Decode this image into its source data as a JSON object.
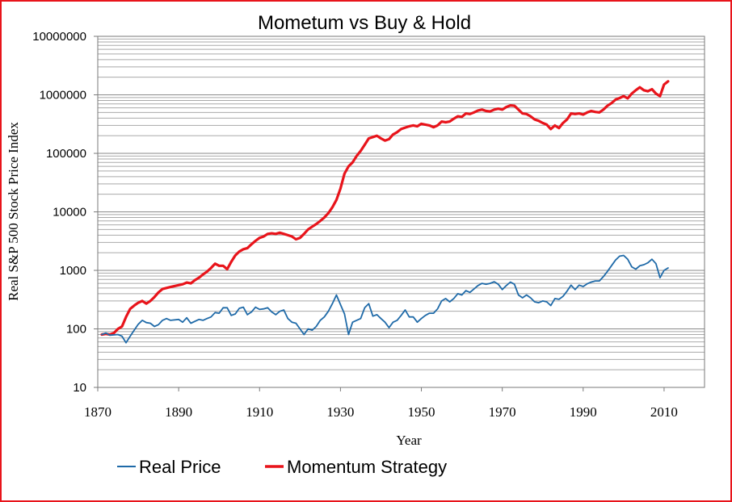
{
  "chart_data": {
    "type": "line",
    "title": "Mometum vs Buy & Hold",
    "xlabel": "Year",
    "ylabel": "Real S&P 500 Stock Price Index",
    "xlim": [
      1870,
      2020
    ],
    "ylim": [
      10,
      10000000
    ],
    "yscale": "log",
    "grid": true,
    "legend_position": "bottom",
    "x_ticks": [
      "1870",
      "1890",
      "1910",
      "1930",
      "1950",
      "1970",
      "1990",
      "2010"
    ],
    "y_ticks": [
      "10",
      "100",
      "1000",
      "10000",
      "100000",
      "1000000",
      "10000000"
    ],
    "series": [
      {
        "name": "Real Price",
        "color": "#1f6aa8",
        "points": [
          [
            1871,
            80
          ],
          [
            1872,
            85
          ],
          [
            1873,
            78
          ],
          [
            1875,
            80
          ],
          [
            1876,
            75
          ],
          [
            1877,
            58
          ],
          [
            1878,
            75
          ],
          [
            1879,
            95
          ],
          [
            1880,
            120
          ],
          [
            1881,
            140
          ],
          [
            1882,
            128
          ],
          [
            1883,
            125
          ],
          [
            1884,
            110
          ],
          [
            1885,
            118
          ],
          [
            1886,
            140
          ],
          [
            1887,
            150
          ],
          [
            1888,
            140
          ],
          [
            1890,
            145
          ],
          [
            1891,
            130
          ],
          [
            1892,
            155
          ],
          [
            1893,
            125
          ],
          [
            1895,
            145
          ],
          [
            1896,
            140
          ],
          [
            1897,
            150
          ],
          [
            1898,
            160
          ],
          [
            1899,
            190
          ],
          [
            1900,
            185
          ],
          [
            1901,
            230
          ],
          [
            1902,
            230
          ],
          [
            1903,
            170
          ],
          [
            1904,
            180
          ],
          [
            1905,
            225
          ],
          [
            1906,
            235
          ],
          [
            1907,
            175
          ],
          [
            1908,
            195
          ],
          [
            1909,
            235
          ],
          [
            1910,
            215
          ],
          [
            1911,
            220
          ],
          [
            1912,
            230
          ],
          [
            1913,
            195
          ],
          [
            1914,
            175
          ],
          [
            1915,
            200
          ],
          [
            1916,
            210
          ],
          [
            1917,
            150
          ],
          [
            1918,
            130
          ],
          [
            1919,
            125
          ],
          [
            1920,
            100
          ],
          [
            1921,
            80
          ],
          [
            1922,
            100
          ],
          [
            1923,
            95
          ],
          [
            1924,
            110
          ],
          [
            1925,
            140
          ],
          [
            1926,
            160
          ],
          [
            1927,
            200
          ],
          [
            1928,
            270
          ],
          [
            1929,
            380
          ],
          [
            1930,
            260
          ],
          [
            1931,
            180
          ],
          [
            1932,
            80
          ],
          [
            1933,
            130
          ],
          [
            1934,
            140
          ],
          [
            1935,
            150
          ],
          [
            1936,
            230
          ],
          [
            1937,
            270
          ],
          [
            1938,
            165
          ],
          [
            1939,
            175
          ],
          [
            1940,
            150
          ],
          [
            1941,
            130
          ],
          [
            1942,
            105
          ],
          [
            1943,
            130
          ],
          [
            1944,
            140
          ],
          [
            1945,
            170
          ],
          [
            1946,
            210
          ],
          [
            1947,
            160
          ],
          [
            1948,
            160
          ],
          [
            1949,
            130
          ],
          [
            1950,
            150
          ],
          [
            1951,
            170
          ],
          [
            1952,
            185
          ],
          [
            1953,
            185
          ],
          [
            1954,
            220
          ],
          [
            1955,
            300
          ],
          [
            1956,
            330
          ],
          [
            1957,
            290
          ],
          [
            1958,
            330
          ],
          [
            1959,
            400
          ],
          [
            1960,
            380
          ],
          [
            1961,
            450
          ],
          [
            1962,
            420
          ],
          [
            1963,
            480
          ],
          [
            1964,
            550
          ],
          [
            1965,
            600
          ],
          [
            1966,
            580
          ],
          [
            1967,
            600
          ],
          [
            1968,
            640
          ],
          [
            1969,
            580
          ],
          [
            1970,
            470
          ],
          [
            1971,
            550
          ],
          [
            1972,
            630
          ],
          [
            1973,
            580
          ],
          [
            1974,
            380
          ],
          [
            1975,
            340
          ],
          [
            1976,
            380
          ],
          [
            1977,
            340
          ],
          [
            1978,
            290
          ],
          [
            1979,
            280
          ],
          [
            1980,
            300
          ],
          [
            1981,
            290
          ],
          [
            1982,
            250
          ],
          [
            1983,
            330
          ],
          [
            1984,
            320
          ],
          [
            1985,
            360
          ],
          [
            1986,
            440
          ],
          [
            1987,
            560
          ],
          [
            1988,
            470
          ],
          [
            1989,
            560
          ],
          [
            1990,
            530
          ],
          [
            1991,
            590
          ],
          [
            1992,
            630
          ],
          [
            1993,
            660
          ],
          [
            1994,
            660
          ],
          [
            1995,
            780
          ],
          [
            1996,
            960
          ],
          [
            1997,
            1200
          ],
          [
            1998,
            1500
          ],
          [
            1999,
            1750
          ],
          [
            2000,
            1800
          ],
          [
            2001,
            1550
          ],
          [
            2002,
            1150
          ],
          [
            2003,
            1050
          ],
          [
            2004,
            1200
          ],
          [
            2005,
            1250
          ],
          [
            2006,
            1350
          ],
          [
            2007,
            1550
          ],
          [
            2008,
            1300
          ],
          [
            2009,
            750
          ],
          [
            2010,
            1000
          ],
          [
            2011,
            1100
          ]
        ]
      },
      {
        "name": "Momentum Strategy",
        "color": "#e8141b",
        "points": [
          [
            1871,
            80
          ],
          [
            1872,
            82
          ],
          [
            1873,
            80
          ],
          [
            1874,
            85
          ],
          [
            1875,
            100
          ],
          [
            1876,
            110
          ],
          [
            1877,
            160
          ],
          [
            1878,
            220
          ],
          [
            1879,
            250
          ],
          [
            1880,
            280
          ],
          [
            1881,
            300
          ],
          [
            1882,
            270
          ],
          [
            1883,
            300
          ],
          [
            1884,
            350
          ],
          [
            1885,
            420
          ],
          [
            1886,
            480
          ],
          [
            1887,
            500
          ],
          [
            1888,
            520
          ],
          [
            1889,
            540
          ],
          [
            1890,
            560
          ],
          [
            1891,
            580
          ],
          [
            1892,
            620
          ],
          [
            1893,
            600
          ],
          [
            1894,
            680
          ],
          [
            1895,
            750
          ],
          [
            1896,
            850
          ],
          [
            1897,
            950
          ],
          [
            1898,
            1100
          ],
          [
            1899,
            1300
          ],
          [
            1900,
            1200
          ],
          [
            1901,
            1200
          ],
          [
            1902,
            1050
          ],
          [
            1903,
            1400
          ],
          [
            1904,
            1800
          ],
          [
            1905,
            2100
          ],
          [
            1906,
            2300
          ],
          [
            1907,
            2400
          ],
          [
            1908,
            2800
          ],
          [
            1909,
            3200
          ],
          [
            1910,
            3600
          ],
          [
            1911,
            3800
          ],
          [
            1912,
            4200
          ],
          [
            1913,
            4300
          ],
          [
            1914,
            4200
          ],
          [
            1915,
            4400
          ],
          [
            1916,
            4200
          ],
          [
            1917,
            4000
          ],
          [
            1918,
            3800
          ],
          [
            1919,
            3400
          ],
          [
            1920,
            3600
          ],
          [
            1921,
            4200
          ],
          [
            1922,
            5000
          ],
          [
            1923,
            5600
          ],
          [
            1924,
            6200
          ],
          [
            1925,
            7000
          ],
          [
            1926,
            8000
          ],
          [
            1927,
            9500
          ],
          [
            1928,
            12000
          ],
          [
            1929,
            16000
          ],
          [
            1930,
            25000
          ],
          [
            1931,
            45000
          ],
          [
            1932,
            60000
          ],
          [
            1933,
            70000
          ],
          [
            1934,
            90000
          ],
          [
            1935,
            110000
          ],
          [
            1936,
            140000
          ],
          [
            1937,
            180000
          ],
          [
            1938,
            190000
          ],
          [
            1939,
            200000
          ],
          [
            1940,
            180000
          ],
          [
            1941,
            165000
          ],
          [
            1942,
            175000
          ],
          [
            1943,
            210000
          ],
          [
            1944,
            230000
          ],
          [
            1945,
            260000
          ],
          [
            1946,
            275000
          ],
          [
            1947,
            290000
          ],
          [
            1948,
            300000
          ],
          [
            1949,
            290000
          ],
          [
            1950,
            320000
          ],
          [
            1951,
            310000
          ],
          [
            1952,
            300000
          ],
          [
            1953,
            280000
          ],
          [
            1954,
            300000
          ],
          [
            1955,
            350000
          ],
          [
            1956,
            340000
          ],
          [
            1957,
            350000
          ],
          [
            1958,
            390000
          ],
          [
            1959,
            430000
          ],
          [
            1960,
            420000
          ],
          [
            1961,
            480000
          ],
          [
            1962,
            470000
          ],
          [
            1963,
            500000
          ],
          [
            1964,
            540000
          ],
          [
            1965,
            560000
          ],
          [
            1966,
            530000
          ],
          [
            1967,
            520000
          ],
          [
            1968,
            560000
          ],
          [
            1969,
            580000
          ],
          [
            1970,
            560000
          ],
          [
            1971,
            620000
          ],
          [
            1972,
            660000
          ],
          [
            1973,
            650000
          ],
          [
            1974,
            560000
          ],
          [
            1975,
            480000
          ],
          [
            1976,
            470000
          ],
          [
            1977,
            430000
          ],
          [
            1978,
            380000
          ],
          [
            1979,
            360000
          ],
          [
            1980,
            330000
          ],
          [
            1981,
            310000
          ],
          [
            1982,
            260000
          ],
          [
            1983,
            300000
          ],
          [
            1984,
            270000
          ],
          [
            1985,
            330000
          ],
          [
            1986,
            380000
          ],
          [
            1987,
            480000
          ],
          [
            1988,
            470000
          ],
          [
            1989,
            480000
          ],
          [
            1990,
            460000
          ],
          [
            1991,
            500000
          ],
          [
            1992,
            530000
          ],
          [
            1993,
            510000
          ],
          [
            1994,
            500000
          ],
          [
            1995,
            560000
          ],
          [
            1996,
            650000
          ],
          [
            1997,
            720000
          ],
          [
            1998,
            830000
          ],
          [
            1999,
            880000
          ],
          [
            2000,
            950000
          ],
          [
            2001,
            870000
          ],
          [
            2002,
            1050000
          ],
          [
            2003,
            1200000
          ],
          [
            2004,
            1350000
          ],
          [
            2005,
            1200000
          ],
          [
            2006,
            1150000
          ],
          [
            2007,
            1250000
          ],
          [
            2008,
            1050000
          ],
          [
            2009,
            950000
          ],
          [
            2010,
            1500000
          ],
          [
            2011,
            1700000
          ]
        ]
      }
    ]
  }
}
